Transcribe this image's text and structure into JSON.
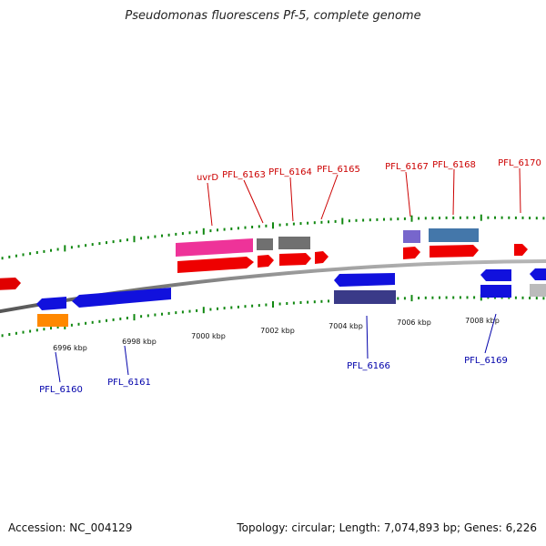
{
  "title": "Pseudomonas fluorescens Pf-5, complete genome",
  "footer": {
    "accession": "Accession: NC_004129",
    "summary": "Topology: circular; Length: 7,074,893 bp; Genes: 6,226"
  },
  "colors": {
    "forward_label": "#cc0000",
    "reverse_label": "#0000aa",
    "tick": "#118811",
    "backbone": "#888888"
  },
  "scale": {
    "ticks": [
      "6996 kbp",
      "6998 kbp",
      "7000 kbp",
      "7002 kbp",
      "7004 kbp",
      "7006 kbp",
      "7008 kbp"
    ]
  },
  "forward_labels": [
    "uvrD",
    "PFL_6163",
    "PFL_6164",
    "PFL_6165",
    "PFL_6167",
    "PFL_6168",
    "PFL_6170"
  ],
  "reverse_labels": [
    "PFL_6160",
    "PFL_6161",
    "PFL_6166",
    "PFL_6169"
  ]
}
